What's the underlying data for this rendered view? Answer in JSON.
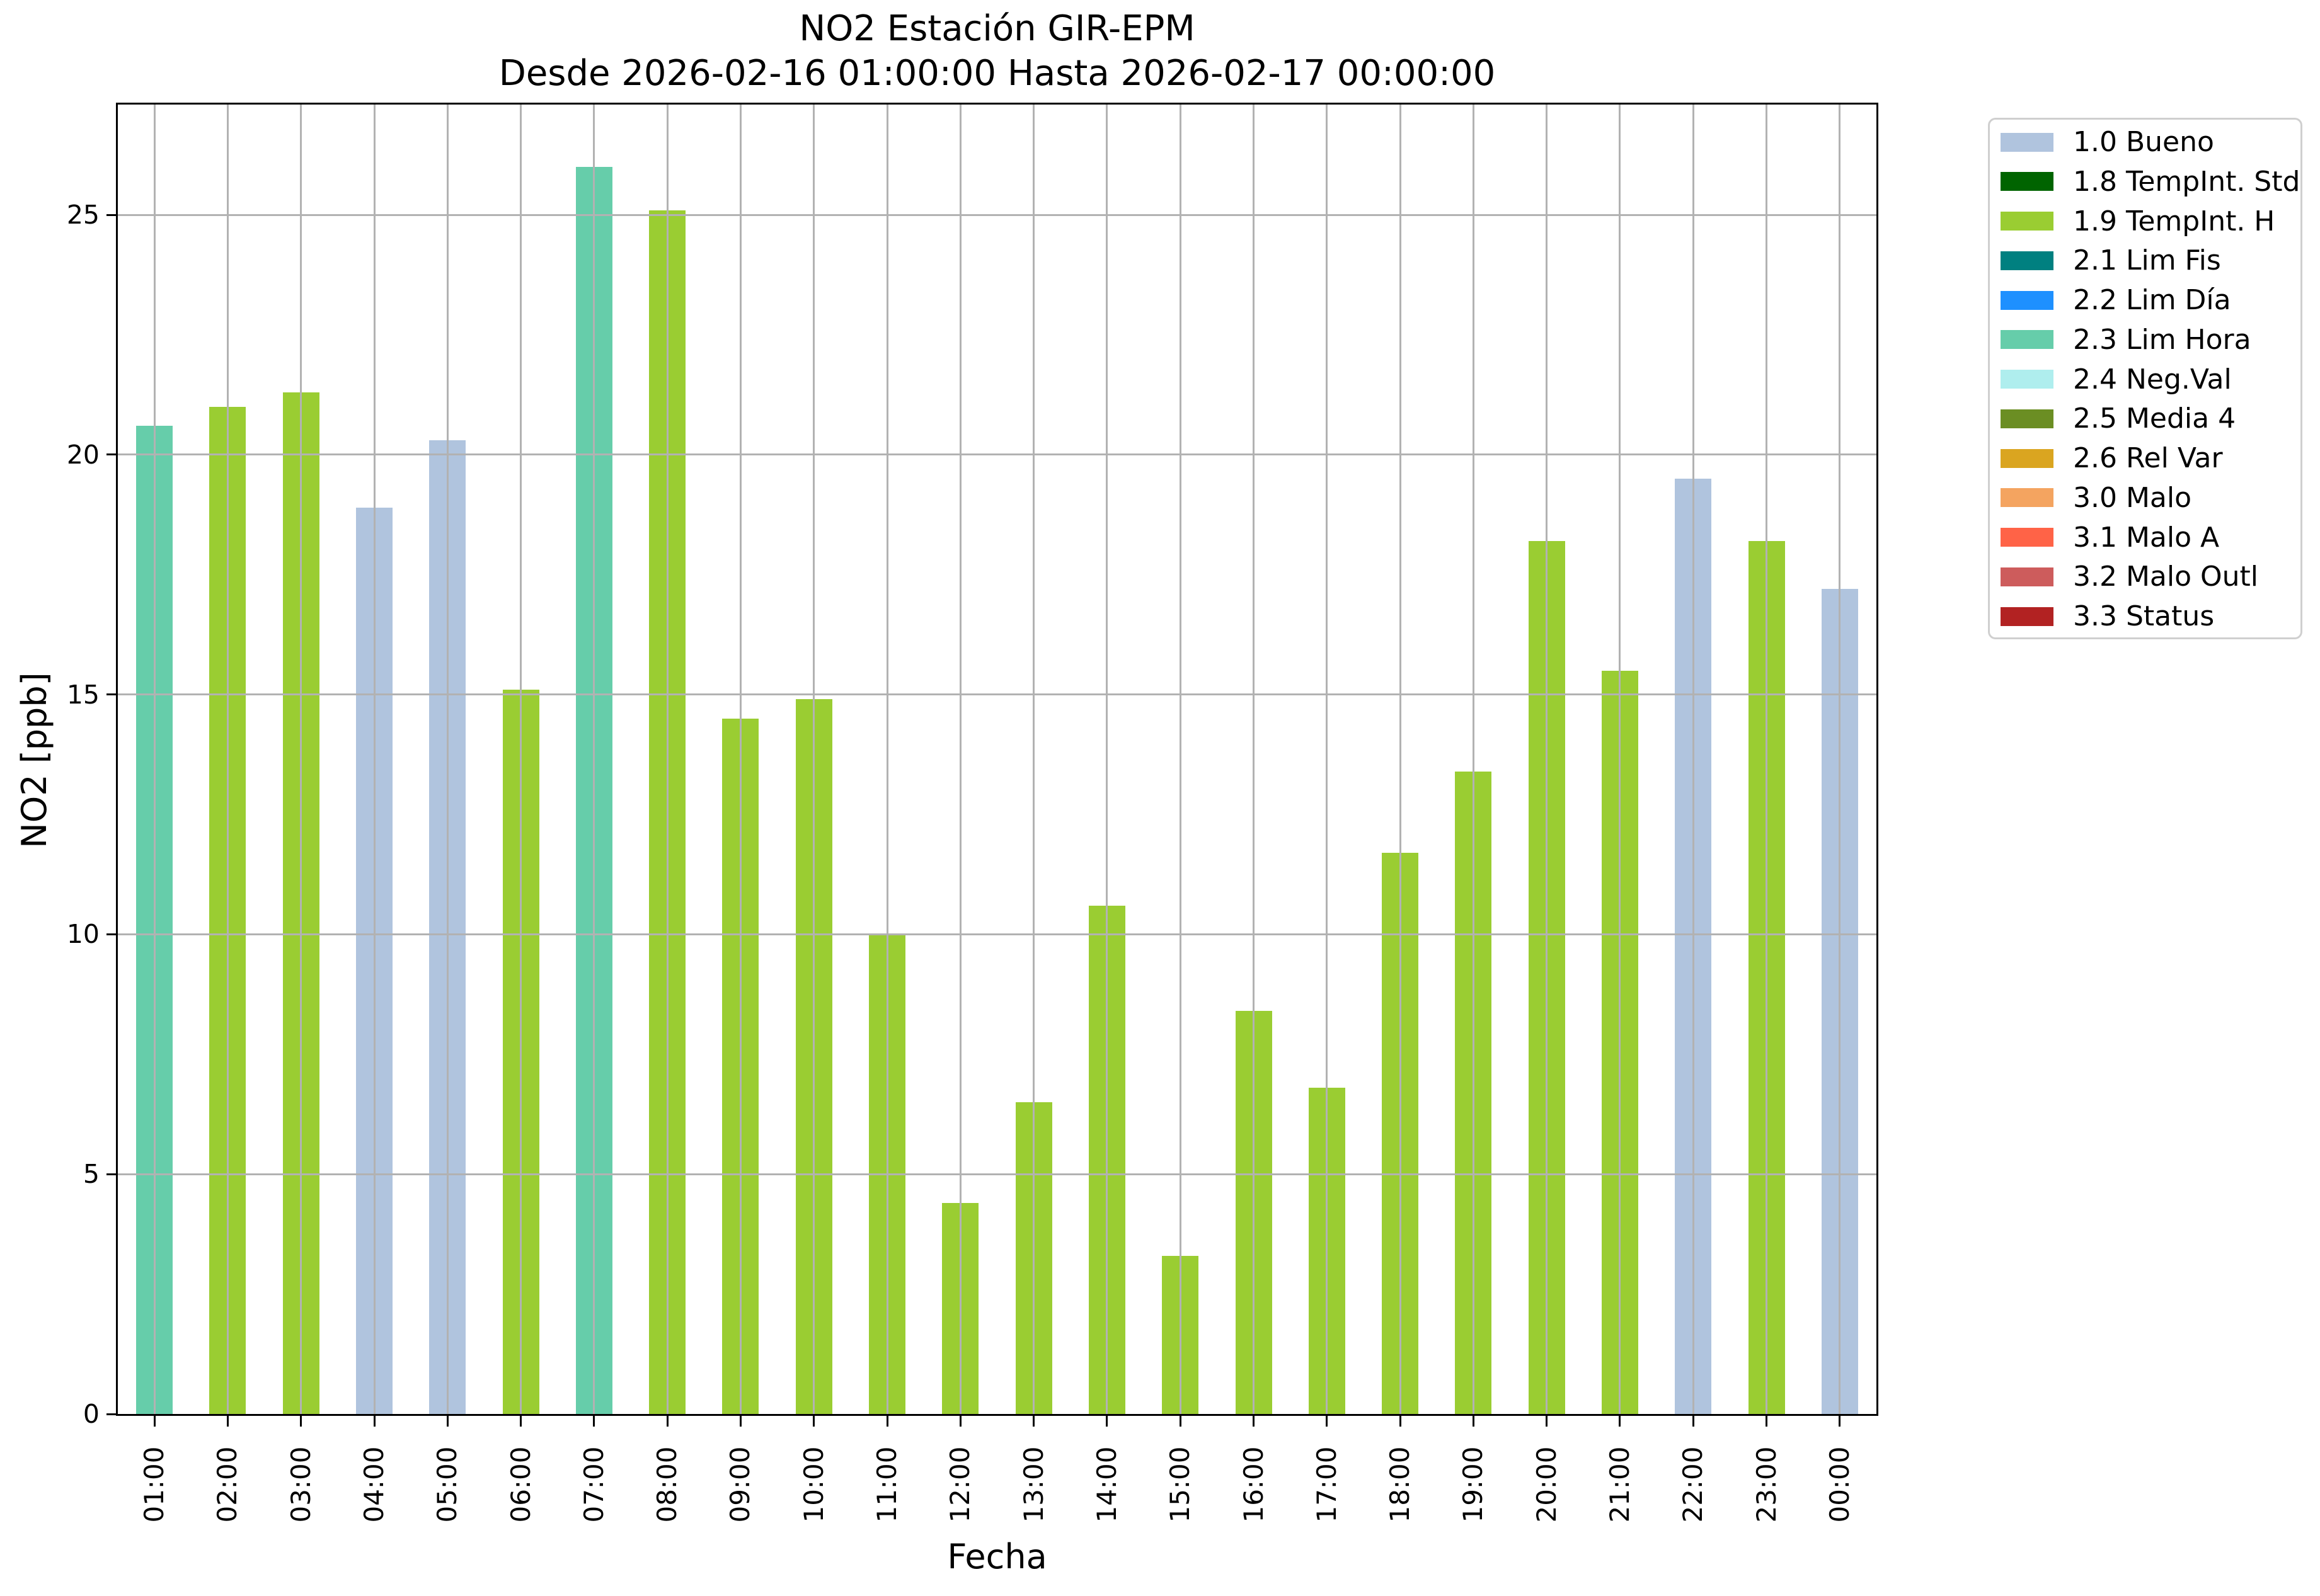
{
  "title": {
    "line1": "NO2 Estación GIR-EPM",
    "line2": "Desde 2026-02-16 01:00:00 Hasta 2026-02-17 00:00:00"
  },
  "axes": {
    "x_label": "Fecha",
    "y_label": "NO2 [ppb]",
    "y_ticks": [
      0,
      5,
      10,
      15,
      20,
      25
    ],
    "ylim": [
      0,
      27.3
    ],
    "grid": true
  },
  "legend": {
    "position": "right-top",
    "entries": [
      {
        "label": "1.0 Bueno",
        "color": "#b0c4de"
      },
      {
        "label": "1.8 TempInt. Std",
        "color": "#006400"
      },
      {
        "label": "1.9 TempInt. H",
        "color": "#9acd32"
      },
      {
        "label": "2.1 Lim Fis",
        "color": "#008080"
      },
      {
        "label": "2.2 Lim Día",
        "color": "#1e90ff"
      },
      {
        "label": "2.3 Lim Hora",
        "color": "#66cdaa"
      },
      {
        "label": "2.4 Neg.Val",
        "color": "#afeeee"
      },
      {
        "label": "2.5 Media 4",
        "color": "#6b8e23"
      },
      {
        "label": "2.6 Rel Var",
        "color": "#daa520"
      },
      {
        "label": "3.0 Malo",
        "color": "#f4a460"
      },
      {
        "label": "3.1 Malo A",
        "color": "#ff6347"
      },
      {
        "label": "3.2 Malo Outl",
        "color": "#cd5c5c"
      },
      {
        "label": "3.3 Status",
        "color": "#b22222"
      }
    ]
  },
  "chart_data": {
    "type": "bar",
    "title": "NO2 Estación GIR-EPM",
    "subtitle": "Desde 2026-02-16 01:00:00 Hasta 2026-02-17 00:00:00",
    "xlabel": "Fecha",
    "ylabel": "NO2 [ppb]",
    "ylim": [
      0,
      27.3
    ],
    "grid": true,
    "legend_position": "right-top",
    "categories": [
      "01:00",
      "02:00",
      "03:00",
      "04:00",
      "05:00",
      "06:00",
      "07:00",
      "08:00",
      "09:00",
      "10:00",
      "11:00",
      "12:00",
      "13:00",
      "14:00",
      "15:00",
      "16:00",
      "17:00",
      "18:00",
      "19:00",
      "20:00",
      "21:00",
      "22:00",
      "23:00",
      "00:00"
    ],
    "values": [
      20.6,
      21.0,
      21.3,
      18.9,
      20.3,
      15.1,
      26.0,
      25.1,
      14.5,
      14.9,
      10.0,
      4.4,
      6.5,
      10.6,
      3.3,
      8.4,
      6.8,
      11.7,
      13.4,
      18.2,
      15.5,
      19.5,
      18.2,
      17.2
    ],
    "bar_status": [
      "2.3 Lim Hora",
      "1.9 TempInt. H",
      "1.9 TempInt. H",
      "1.0 Bueno",
      "1.0 Bueno",
      "1.9 TempInt. H",
      "2.3 Lim Hora",
      "1.9 TempInt. H",
      "1.9 TempInt. H",
      "1.9 TempInt. H",
      "1.9 TempInt. H",
      "1.9 TempInt. H",
      "1.9 TempInt. H",
      "1.9 TempInt. H",
      "1.9 TempInt. H",
      "1.9 TempInt. H",
      "1.9 TempInt. H",
      "1.9 TempInt. H",
      "1.9 TempInt. H",
      "1.9 TempInt. H",
      "1.9 TempInt. H",
      "1.0 Bueno",
      "1.9 TempInt. H",
      "1.0 Bueno"
    ]
  },
  "colors": {
    "grid": "#b2b2b2",
    "spine": "#000000",
    "background": "#ffffff"
  }
}
